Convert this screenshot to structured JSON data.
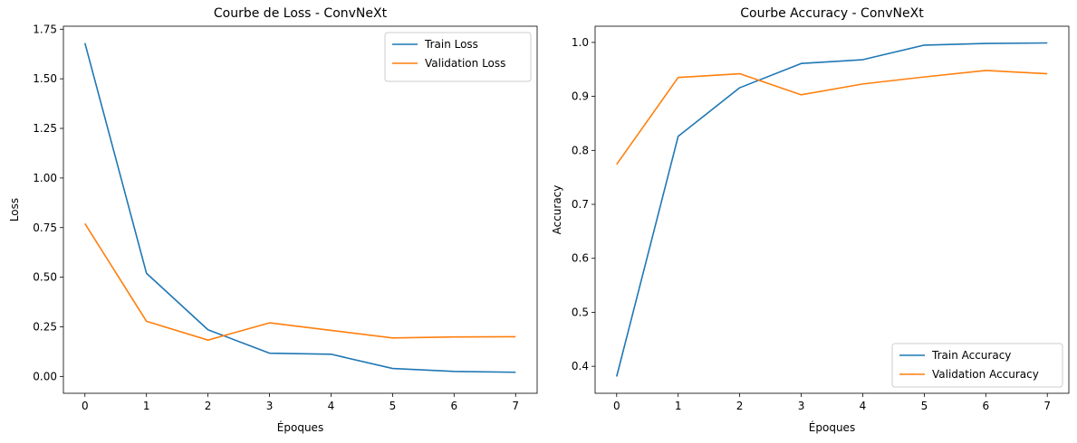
{
  "chart_data": [
    {
      "type": "line",
      "title": "Courbe de Loss - ConvNeXt",
      "xlabel": "Époques",
      "ylabel": "Loss",
      "x": [
        0,
        1,
        2,
        3,
        4,
        5,
        6,
        7
      ],
      "xlim": [
        -0.35,
        7.35
      ],
      "ylim": [
        -0.085,
        1.765
      ],
      "xticks": [
        0,
        1,
        2,
        3,
        4,
        5,
        6,
        7
      ],
      "yticks": [
        0.0,
        0.25,
        0.5,
        0.75,
        1.0,
        1.25,
        1.5,
        1.75
      ],
      "ytick_labels": [
        "0.00",
        "0.25",
        "0.50",
        "0.75",
        "1.00",
        "1.25",
        "1.50",
        "1.75"
      ],
      "grid": false,
      "legend_position": "top-right",
      "series": [
        {
          "name": "Train Loss",
          "color": "#1f77b4",
          "values": [
            1.68,
            0.52,
            0.235,
            0.117,
            0.112,
            0.04,
            0.025,
            0.021
          ]
        },
        {
          "name": "Validation Loss",
          "color": "#ff7f0e",
          "values": [
            0.77,
            0.278,
            0.183,
            0.27,
            0.232,
            0.194,
            0.199,
            0.2
          ]
        }
      ]
    },
    {
      "type": "line",
      "title": "Courbe Accuracy - ConvNeXt",
      "xlabel": "Époques",
      "ylabel": "Accuracy",
      "x": [
        0,
        1,
        2,
        3,
        4,
        5,
        6,
        7
      ],
      "xlim": [
        -0.35,
        7.35
      ],
      "ylim": [
        0.35,
        1.03
      ],
      "xticks": [
        0,
        1,
        2,
        3,
        4,
        5,
        6,
        7
      ],
      "yticks": [
        0.4,
        0.5,
        0.6,
        0.7,
        0.8,
        0.9,
        1.0
      ],
      "ytick_labels": [
        "0.4",
        "0.5",
        "0.6",
        "0.7",
        "0.8",
        "0.9",
        "1.0"
      ],
      "grid": false,
      "legend_position": "bottom-right",
      "series": [
        {
          "name": "Train Accuracy",
          "color": "#1f77b4",
          "values": [
            0.381,
            0.826,
            0.916,
            0.961,
            0.968,
            0.995,
            0.998,
            0.999
          ]
        },
        {
          "name": "Validation Accuracy",
          "color": "#ff7f0e",
          "values": [
            0.774,
            0.935,
            0.942,
            0.903,
            0.923,
            0.936,
            0.948,
            0.942
          ]
        }
      ]
    }
  ]
}
